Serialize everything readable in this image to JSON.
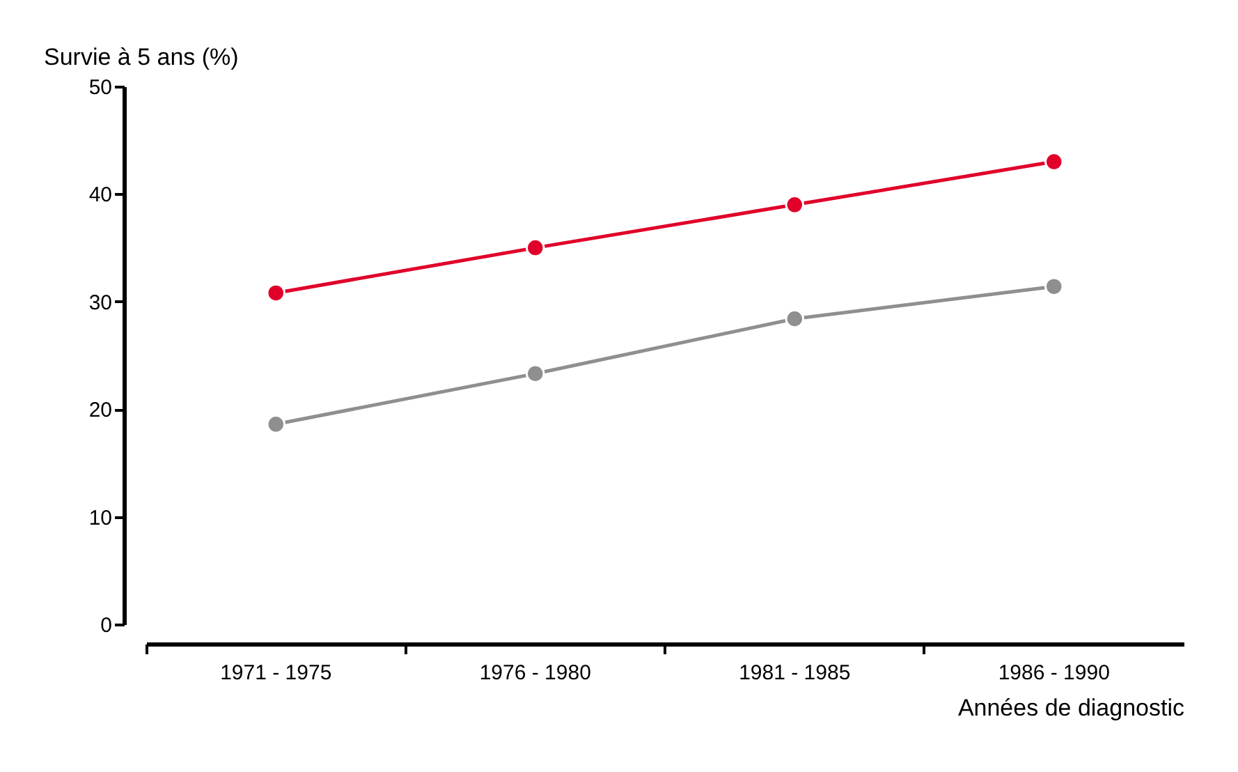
{
  "chart_data": {
    "type": "line",
    "ylabel": "Survie à 5 ans (%)",
    "xlabel": "Années de diagnostic",
    "categories": [
      "1971 - 1975",
      "1976 - 1980",
      "1981 - 1985",
      "1986 - 1990"
    ],
    "series": [
      {
        "color": "#e0002a",
        "values": [
          30.8,
          35.0,
          39.0,
          43.0
        ]
      },
      {
        "color": "#8f8f8f",
        "values": [
          18.6,
          23.3,
          28.4,
          31.4
        ]
      }
    ],
    "ylim": [
      0,
      50
    ],
    "yticks": [
      0,
      10,
      20,
      30,
      40,
      50
    ],
    "grid": false,
    "marker": "circle",
    "line_style": "solid"
  }
}
